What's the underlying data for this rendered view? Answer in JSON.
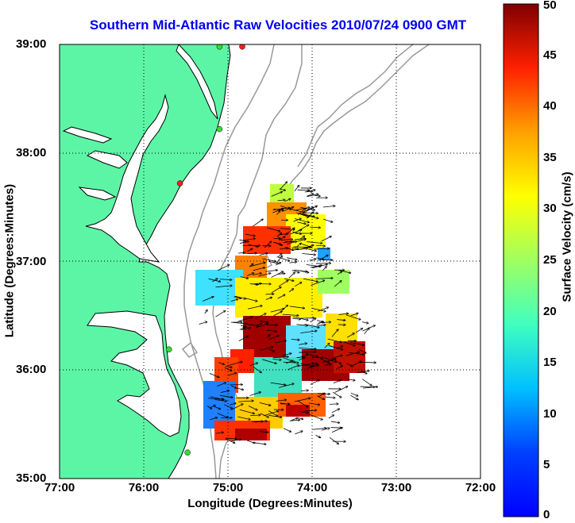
{
  "title": "Southern Mid-Atlantic Raw Velocities 2010/07/24 0900 GMT",
  "xlabel": "Longitude (Degrees:Minutes)",
  "ylabel": "Latitude (Degrees:Minutes)",
  "colorbar": {
    "label": "Surface Velocity (cm/s)",
    "min": 0,
    "max": 50,
    "ticks": [
      "0",
      "5",
      "10",
      "15",
      "20",
      "25",
      "30",
      "35",
      "40",
      "45",
      "50"
    ]
  },
  "axes": {
    "x_ticks": [
      "77:00",
      "76:00",
      "75:00",
      "74:00",
      "73:00",
      "72:00"
    ],
    "y_ticks": [
      "39:00",
      "38:00",
      "37:00",
      "36:00",
      "35:00"
    ],
    "xlim": [
      -77,
      -72
    ],
    "ylim": [
      35,
      39
    ],
    "grid": "dotted"
  },
  "colors": {
    "land": "#5cf5a6",
    "coast": "#000000",
    "bathymetry": "#999999",
    "title": "#0000ee",
    "station_active": "#33dd33",
    "station_inactive": "#ee2222"
  },
  "stations": [
    {
      "lon": -74.83,
      "lat": 38.98,
      "status": "inactive"
    },
    {
      "lon": -75.1,
      "lat": 38.98,
      "status": "active"
    },
    {
      "lon": -75.1,
      "lat": 38.22,
      "status": "active"
    },
    {
      "lon": -75.57,
      "lat": 37.72,
      "status": "inactive"
    },
    {
      "lon": -75.7,
      "lat": 36.19,
      "status": "active"
    },
    {
      "lon": -75.48,
      "lat": 35.24,
      "status": "active"
    }
  ]
}
